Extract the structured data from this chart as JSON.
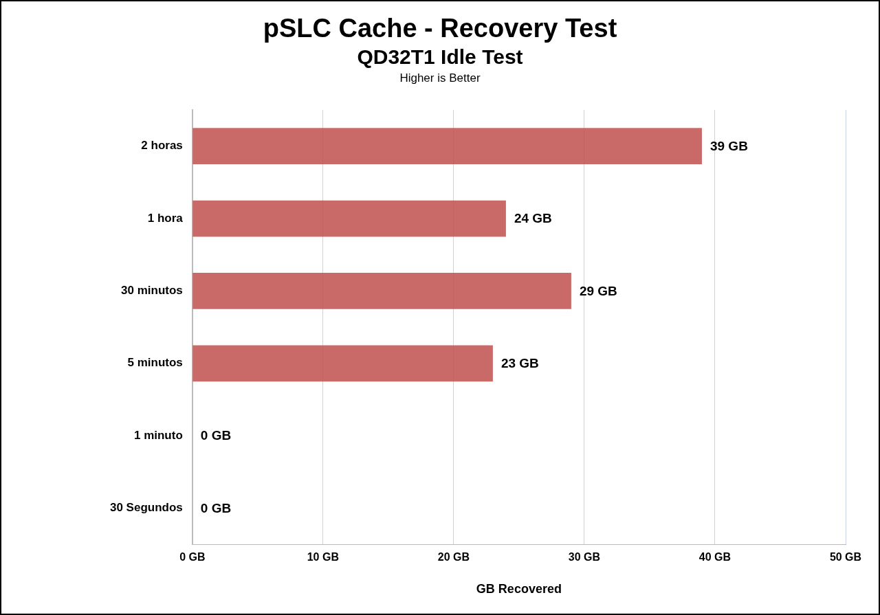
{
  "chart_data": {
    "type": "bar",
    "orientation": "horizontal",
    "title": "pSLC Cache - Recovery Test",
    "subtitle": "QD32T1 Idle Test",
    "annotations": [
      "Higher is Better"
    ],
    "xlabel": "GB Recovered",
    "categories": [
      "2 horas",
      "1 hora",
      "30 minutos",
      "5 minutos",
      "1 minuto",
      "30 Segundos"
    ],
    "values": [
      39,
      24,
      29,
      23,
      0,
      0
    ],
    "value_labels": [
      "39 GB",
      "24 GB",
      "29 GB",
      "23 GB",
      "0 GB",
      "0 GB"
    ],
    "color": "#c0504d",
    "xlim": [
      0,
      50
    ],
    "xticks": [
      {
        "value": 0,
        "label": "0 GB"
      },
      {
        "value": 10,
        "label": "10 GB"
      },
      {
        "value": 20,
        "label": "20 GB"
      },
      {
        "value": 30,
        "label": "30 GB"
      },
      {
        "value": 40,
        "label": "40 GB"
      },
      {
        "value": 50,
        "label": "50 GB"
      }
    ],
    "grid": "x",
    "legend": false
  }
}
